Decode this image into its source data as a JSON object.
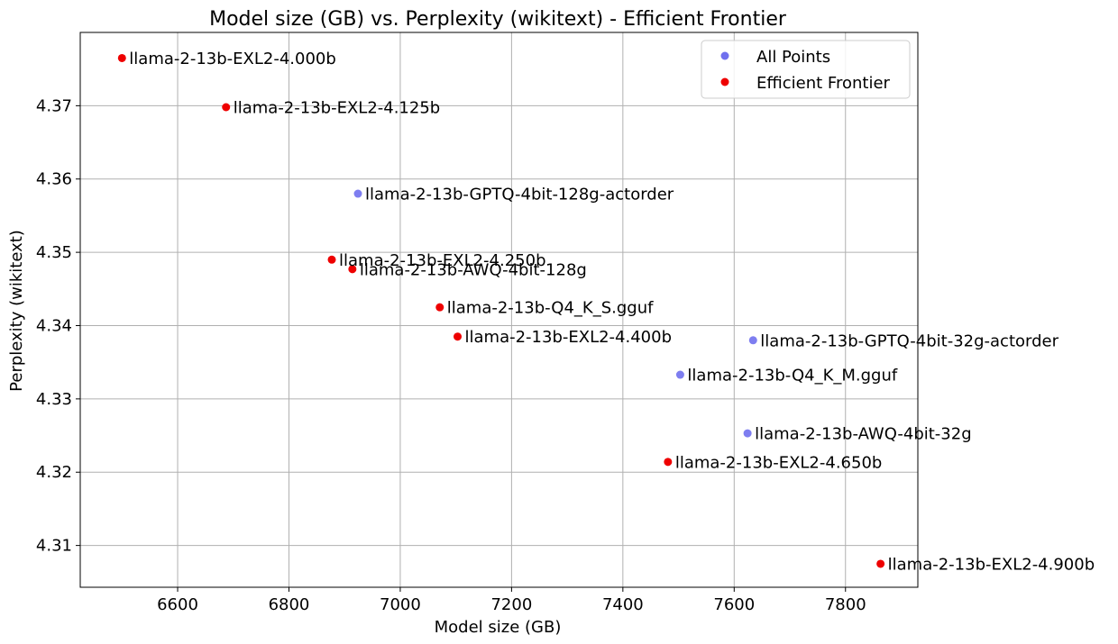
{
  "chart_data": {
    "type": "scatter",
    "title": "Model size (GB) vs. Perplexity (wikitext) - Efficient Frontier",
    "xlabel": "Model size (GB)",
    "ylabel": "Perplexity (wikitext)",
    "xlim": [
      6425,
      7930
    ],
    "ylim": [
      4.3043,
      4.38
    ],
    "xticks": [
      6600,
      6800,
      7000,
      7200,
      7400,
      7600,
      7800
    ],
    "yticks": [
      4.31,
      4.32,
      4.33,
      4.34,
      4.35,
      4.36,
      4.37
    ],
    "ytick_labels": [
      "4.31",
      "4.32",
      "4.33",
      "4.34",
      "4.35",
      "4.36",
      "4.37"
    ],
    "grid": true,
    "legend_position": "top-right",
    "series": [
      {
        "name": "All Points",
        "color": "#7070ee",
        "points": [
          {
            "label": "llama-2-13b-GPTQ-4bit-128g-actorder",
            "x": 6924,
            "y": 4.358
          },
          {
            "label": "llama-2-13b-GPTQ-4bit-32g-actorder",
            "x": 7634,
            "y": 4.338
          },
          {
            "label": "llama-2-13b-Q4_K_M.gguf",
            "x": 7503,
            "y": 4.3333
          },
          {
            "label": "llama-2-13b-AWQ-4bit-32g",
            "x": 7624,
            "y": 4.3253
          }
        ]
      },
      {
        "name": "Efficient Frontier",
        "color": "#ee0000",
        "points": [
          {
            "label": "llama-2-13b-EXL2-4.000b",
            "x": 6500,
            "y": 4.3765
          },
          {
            "label": "llama-2-13b-EXL2-4.125b",
            "x": 6687,
            "y": 4.3698
          },
          {
            "label": "llama-2-13b-EXL2-4.250b",
            "x": 6877,
            "y": 4.349
          },
          {
            "label": "llama-2-13b-AWQ-4bit-128g",
            "x": 6914,
            "y": 4.3477
          },
          {
            "label": "llama-2-13b-Q4_K_S.gguf",
            "x": 7071,
            "y": 4.3425
          },
          {
            "label": "llama-2-13b-EXL2-4.400b",
            "x": 7103,
            "y": 4.3385
          },
          {
            "label": "llama-2-13b-EXL2-4.650b",
            "x": 7481,
            "y": 4.3214
          },
          {
            "label": "llama-2-13b-EXL2-4.900b",
            "x": 7863,
            "y": 4.3075
          }
        ]
      }
    ]
  }
}
